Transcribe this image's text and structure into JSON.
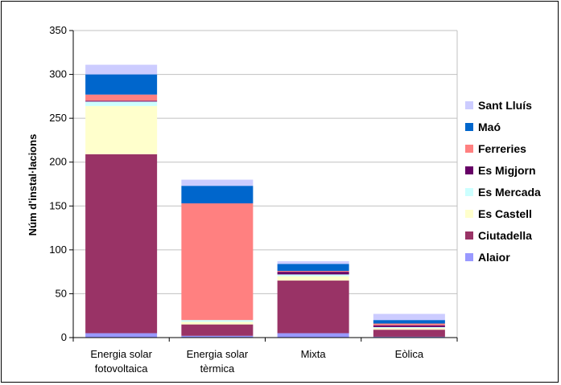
{
  "chart_data": {
    "type": "bar",
    "stacked": true,
    "title": "",
    "xlabel": "",
    "ylabel": "Núm d'instal·lacions",
    "ylim": [
      0,
      350
    ],
    "yticks": [
      0,
      50,
      100,
      150,
      200,
      250,
      300,
      350
    ],
    "grid": true,
    "legend_position": "right",
    "categories": [
      [
        "Energia solar",
        "fotovoltaica"
      ],
      [
        "Energia solar",
        "tèrmica"
      ],
      [
        "Mixta"
      ],
      [
        "Eòlica"
      ]
    ],
    "series": [
      {
        "name": "Alaior",
        "color": "#9999ff",
        "values": [
          5,
          2,
          5,
          1
        ]
      },
      {
        "name": "Ciutadella",
        "color": "#993366",
        "values": [
          204,
          13,
          60,
          8
        ]
      },
      {
        "name": "Es Castell",
        "color": "#ffffcc",
        "values": [
          55,
          3,
          5,
          2
        ]
      },
      {
        "name": "Es Mercada",
        "color": "#ccffff",
        "values": [
          5,
          2,
          2,
          1
        ]
      },
      {
        "name": "Es Migjorn",
        "color": "#660066",
        "values": [
          1,
          0,
          3,
          2
        ]
      },
      {
        "name": "Ferreries",
        "color": "#ff8080",
        "values": [
          7,
          133,
          1,
          2
        ]
      },
      {
        "name": "Maó",
        "color": "#0066cc",
        "values": [
          23,
          20,
          8,
          4
        ]
      },
      {
        "name": "Sant Lluís",
        "color": "#ccccff",
        "values": [
          11,
          7,
          3,
          7
        ]
      }
    ]
  }
}
